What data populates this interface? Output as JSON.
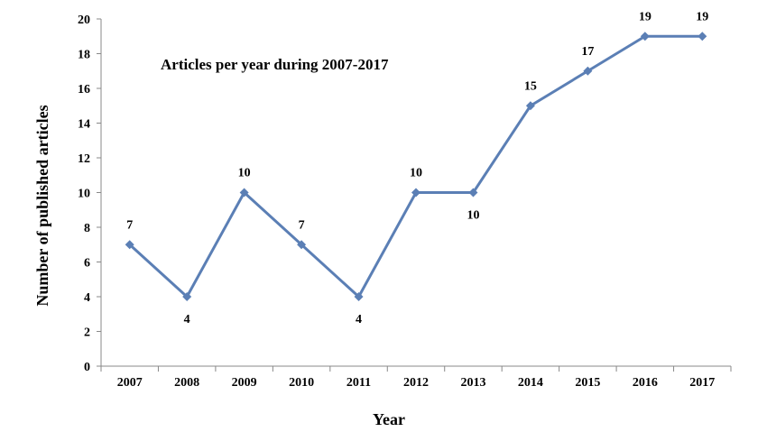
{
  "chart_data": {
    "type": "line",
    "title": "Articles per year during 2007-2017",
    "xlabel": "Year",
    "ylabel": "Number of published  articles",
    "categories": [
      "2007",
      "2008",
      "2009",
      "2010",
      "2011",
      "2012",
      "2013",
      "2014",
      "2015",
      "2016",
      "2017"
    ],
    "series": [
      {
        "values": [
          7,
          4,
          10,
          7,
          4,
          10,
          10,
          15,
          17,
          19,
          19
        ]
      }
    ],
    "data_labels": [
      "7",
      "4",
      "10",
      "7",
      "4",
      "10",
      "10",
      "15",
      "17",
      "19",
      "19"
    ],
    "label_side": [
      "above",
      "below",
      "above",
      "above",
      "below",
      "above",
      "below",
      "above",
      "above",
      "above",
      "above"
    ],
    "y_ticks": [
      0,
      2,
      4,
      6,
      8,
      10,
      12,
      14,
      16,
      18,
      20
    ],
    "ylim": [
      0,
      20
    ],
    "grid": false,
    "legend": "none",
    "series_color": "#5b7fb5"
  }
}
